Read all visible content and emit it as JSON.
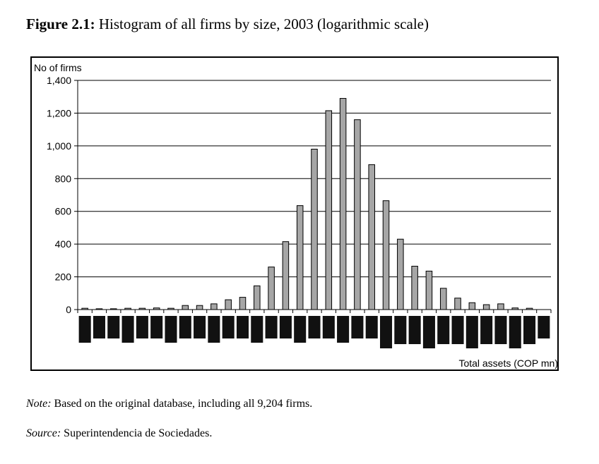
{
  "figure": {
    "label": "Figure 2.1:",
    "title": "Histogram of all firms by size, 2003 (logarithmic scale)"
  },
  "note": {
    "label": "Note:",
    "text": "Based on the original database, including all 9,204 firms."
  },
  "source": {
    "label": "Source:",
    "text": "Superintendencia de Sociedades."
  },
  "chart_data": {
    "type": "bar",
    "title": "",
    "ylabel": "No of firms",
    "xlabel": "Total assets (COP mn)",
    "ylim": [
      0,
      1400
    ],
    "yticks": [
      0,
      200,
      400,
      600,
      800,
      1000,
      1200,
      1400
    ],
    "ytick_labels": [
      "0",
      "200",
      "400",
      "600",
      "800",
      "1,000",
      "1,200",
      "1,400"
    ],
    "grid": true,
    "legend": "none",
    "bar_color": "#a6a6a6",
    "categories": [
      "",
      "",
      "",
      "",
      "",
      "",
      "",
      "",
      "",
      "",
      "",
      "",
      "",
      "",
      "",
      "",
      "",
      "",
      "",
      "",
      "",
      "",
      "",
      "",
      "",
      "",
      "",
      "",
      "",
      "",
      "",
      "",
      ""
    ],
    "values": [
      8,
      5,
      5,
      8,
      8,
      10,
      8,
      25,
      25,
      35,
      60,
      75,
      145,
      260,
      415,
      635,
      980,
      1215,
      1290,
      1160,
      885,
      665,
      430,
      265,
      235,
      130,
      70,
      42,
      30,
      35,
      10,
      8,
      0
    ]
  }
}
